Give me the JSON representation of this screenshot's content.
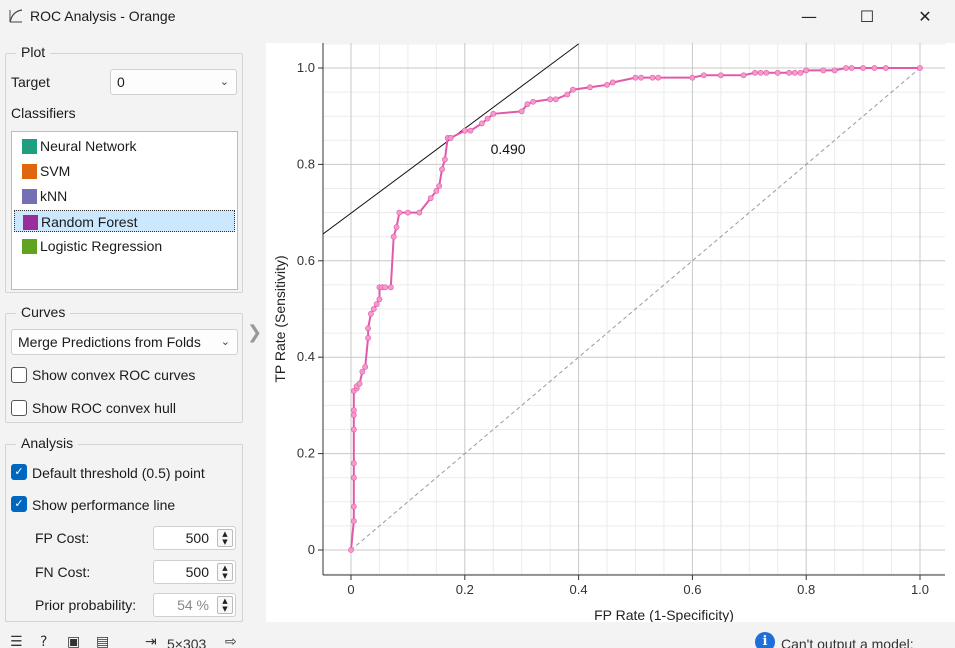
{
  "window": {
    "title": "ROC Analysis - Orange",
    "icon": "roc-curve-icon",
    "minimize_glyph": "—",
    "maximize_glyph": "☐",
    "close_glyph": "✕"
  },
  "plot_group": {
    "title": "Plot",
    "target_label": "Target",
    "target_value": "0",
    "classifiers_label": "Classifiers",
    "classifiers": [
      {
        "name": "Neural Network",
        "color": "#1f9e80",
        "selected": false
      },
      {
        "name": "SVM",
        "color": "#e0650f",
        "selected": false
      },
      {
        "name": "kNN",
        "color": "#7570b3",
        "selected": false
      },
      {
        "name": "Random Forest",
        "color": "#9b2c9b",
        "selected": true
      },
      {
        "name": "Logistic Regression",
        "color": "#5fa321",
        "selected": false
      }
    ]
  },
  "curves_group": {
    "title": "Curves",
    "merge_value": "Merge Predictions from Folds",
    "show_convex_curves": {
      "label": "Show convex ROC curves",
      "checked": false
    },
    "show_convex_hull": {
      "label": "Show ROC convex hull",
      "checked": false
    }
  },
  "analysis_group": {
    "title": "Analysis",
    "default_threshold": {
      "label": "Default threshold (0.5) point",
      "checked": true
    },
    "performance_line": {
      "label": "Show performance line",
      "checked": true
    },
    "fp_cost": {
      "label": "FP Cost:",
      "value": "500"
    },
    "fn_cost": {
      "label": "FN Cost:",
      "value": "500"
    },
    "prior": {
      "label": "Prior probability:",
      "value": "54 %"
    }
  },
  "status": {
    "size_text": "5×303",
    "message": "Can't output a model:"
  },
  "chart_data": {
    "type": "line",
    "xlabel": "FP Rate (1-Specificity)",
    "ylabel": "TP Rate (Sensitivity)",
    "xlim": [
      0,
      1
    ],
    "ylim": [
      0,
      1
    ],
    "x_ticks": [
      "0",
      "0.2",
      "0.4",
      "0.6",
      "0.8",
      "1.0"
    ],
    "y_ticks": [
      "0",
      "0.2",
      "0.4",
      "0.6",
      "0.8",
      "1.0"
    ],
    "grid": true,
    "curve_color": "#e05aa8",
    "point_color": "#f59acb",
    "series": [
      {
        "name": "Random Forest",
        "x": [
          0,
          0.005,
          0.005,
          0.005,
          0.005,
          0.005,
          0.005,
          0.005,
          0.005,
          0.01,
          0.01,
          0.015,
          0.02,
          0.025,
          0.03,
          0.03,
          0.035,
          0.04,
          0.045,
          0.05,
          0.05,
          0.055,
          0.06,
          0.07,
          0.075,
          0.08,
          0.085,
          0.1,
          0.12,
          0.14,
          0.15,
          0.155,
          0.16,
          0.165,
          0.17,
          0.175,
          0.175,
          0.2,
          0.21,
          0.23,
          0.24,
          0.25,
          0.3,
          0.31,
          0.32,
          0.35,
          0.36,
          0.38,
          0.39,
          0.42,
          0.45,
          0.46,
          0.5,
          0.51,
          0.53,
          0.54,
          0.6,
          0.62,
          0.65,
          0.69,
          0.71,
          0.72,
          0.73,
          0.75,
          0.77,
          0.78,
          0.79,
          0.8,
          0.83,
          0.85,
          0.87,
          0.88,
          0.9,
          0.92,
          0.94,
          1.0
        ],
        "y": [
          0,
          0.06,
          0.09,
          0.15,
          0.18,
          0.25,
          0.28,
          0.29,
          0.33,
          0.335,
          0.34,
          0.345,
          0.37,
          0.38,
          0.44,
          0.46,
          0.49,
          0.5,
          0.51,
          0.52,
          0.545,
          0.545,
          0.545,
          0.545,
          0.65,
          0.67,
          0.7,
          0.7,
          0.7,
          0.73,
          0.745,
          0.755,
          0.79,
          0.81,
          0.855,
          0.855,
          0.855,
          0.87,
          0.87,
          0.885,
          0.895,
          0.905,
          0.91,
          0.925,
          0.93,
          0.935,
          0.935,
          0.945,
          0.955,
          0.96,
          0.965,
          0.97,
          0.98,
          0.98,
          0.98,
          0.98,
          0.98,
          0.985,
          0.985,
          0.985,
          0.99,
          0.99,
          0.99,
          0.99,
          0.99,
          0.99,
          0.99,
          0.995,
          0.995,
          0.995,
          1.0,
          1.0,
          1.0,
          1.0,
          1.0,
          1.0
        ]
      }
    ],
    "annotations": [
      {
        "text": "0.490",
        "x": 0.175,
        "y": 0.855
      }
    ],
    "performance_line": {
      "x1": -0.05,
      "y1": 0.655,
      "x2": 0.4,
      "y2": 1.05
    },
    "diagonal": true
  }
}
